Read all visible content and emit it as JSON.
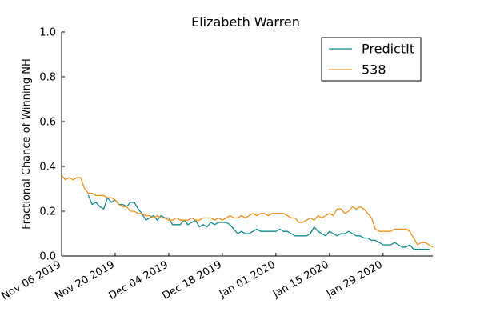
{
  "chart_data": {
    "type": "line",
    "title": "Elizabeth Warren",
    "xlabel": "",
    "ylabel": "Fractional Chance of Winning NH",
    "x_range": [
      "2019-11-06",
      "2020-02-11"
    ],
    "ylim": [
      0.0,
      1.0
    ],
    "yticks": [
      "0.0",
      "0.2",
      "0.4",
      "0.6",
      "0.8",
      "1.0"
    ],
    "xticks": [
      {
        "date": "2019-11-06",
        "label": "Nov 06 2019"
      },
      {
        "date": "2019-11-20",
        "label": "Nov 20 2019"
      },
      {
        "date": "2019-12-04",
        "label": "Dec 04 2019"
      },
      {
        "date": "2019-12-18",
        "label": "Dec 18 2019"
      },
      {
        "date": "2020-01-01",
        "label": "Jan 01 2020"
      },
      {
        "date": "2020-01-15",
        "label": "Jan 15 2020"
      },
      {
        "date": "2020-01-29",
        "label": "Jan 29 2020"
      }
    ],
    "grid": false,
    "legend": "top-right",
    "series": [
      {
        "name": "PredictIt",
        "color": "#0e8a8f",
        "points": [
          [
            "2019-11-13",
            0.27
          ],
          [
            "2019-11-14",
            0.23
          ],
          [
            "2019-11-15",
            0.24
          ],
          [
            "2019-11-16",
            0.22
          ],
          [
            "2019-11-17",
            0.21
          ],
          [
            "2019-11-18",
            0.26
          ],
          [
            "2019-11-19",
            0.24
          ],
          [
            "2019-11-20",
            0.25
          ],
          [
            "2019-11-21",
            0.23
          ],
          [
            "2019-11-22",
            0.23
          ],
          [
            "2019-11-23",
            0.22
          ],
          [
            "2019-11-24",
            0.24
          ],
          [
            "2019-11-25",
            0.24
          ],
          [
            "2019-11-26",
            0.21
          ],
          [
            "2019-11-27",
            0.19
          ],
          [
            "2019-11-28",
            0.16
          ],
          [
            "2019-11-29",
            0.17
          ],
          [
            "2019-11-30",
            0.18
          ],
          [
            "2019-12-01",
            0.16
          ],
          [
            "2019-12-02",
            0.18
          ],
          [
            "2019-12-03",
            0.17
          ],
          [
            "2019-12-04",
            0.17
          ],
          [
            "2019-12-05",
            0.14
          ],
          [
            "2019-12-06",
            0.14
          ],
          [
            "2019-12-07",
            0.14
          ],
          [
            "2019-12-08",
            0.16
          ],
          [
            "2019-12-09",
            0.14
          ],
          [
            "2019-12-10",
            0.15
          ],
          [
            "2019-12-11",
            0.16
          ],
          [
            "2019-12-12",
            0.13
          ],
          [
            "2019-12-13",
            0.14
          ],
          [
            "2019-12-14",
            0.13
          ],
          [
            "2019-12-15",
            0.15
          ],
          [
            "2019-12-16",
            0.14
          ],
          [
            "2019-12-17",
            0.15
          ],
          [
            "2019-12-18",
            0.15
          ],
          [
            "2019-12-19",
            0.15
          ],
          [
            "2019-12-20",
            0.14
          ],
          [
            "2019-12-21",
            0.12
          ],
          [
            "2019-12-22",
            0.1
          ],
          [
            "2019-12-23",
            0.11
          ],
          [
            "2019-12-24",
            0.1
          ],
          [
            "2019-12-25",
            0.1
          ],
          [
            "2019-12-26",
            0.11
          ],
          [
            "2019-12-27",
            0.12
          ],
          [
            "2019-12-28",
            0.11
          ],
          [
            "2019-12-29",
            0.11
          ],
          [
            "2019-12-30",
            0.11
          ],
          [
            "2019-12-31",
            0.11
          ],
          [
            "2020-01-01",
            0.11
          ],
          [
            "2020-01-02",
            0.12
          ],
          [
            "2020-01-03",
            0.11
          ],
          [
            "2020-01-04",
            0.11
          ],
          [
            "2020-01-05",
            0.1
          ],
          [
            "2020-01-06",
            0.09
          ],
          [
            "2020-01-07",
            0.09
          ],
          [
            "2020-01-08",
            0.09
          ],
          [
            "2020-01-09",
            0.09
          ],
          [
            "2020-01-10",
            0.1
          ],
          [
            "2020-01-11",
            0.13
          ],
          [
            "2020-01-12",
            0.11
          ],
          [
            "2020-01-13",
            0.1
          ],
          [
            "2020-01-14",
            0.09
          ],
          [
            "2020-01-15",
            0.11
          ],
          [
            "2020-01-16",
            0.1
          ],
          [
            "2020-01-17",
            0.09
          ],
          [
            "2020-01-18",
            0.1
          ],
          [
            "2020-01-19",
            0.1
          ],
          [
            "2020-01-20",
            0.11
          ],
          [
            "2020-01-21",
            0.1
          ],
          [
            "2020-01-22",
            0.09
          ],
          [
            "2020-01-23",
            0.09
          ],
          [
            "2020-01-24",
            0.08
          ],
          [
            "2020-01-25",
            0.08
          ],
          [
            "2020-01-26",
            0.07
          ],
          [
            "2020-01-27",
            0.07
          ],
          [
            "2020-01-28",
            0.06
          ],
          [
            "2020-01-29",
            0.05
          ],
          [
            "2020-01-30",
            0.05
          ],
          [
            "2020-01-31",
            0.05
          ],
          [
            "2020-02-01",
            0.06
          ],
          [
            "2020-02-02",
            0.05
          ],
          [
            "2020-02-03",
            0.04
          ],
          [
            "2020-02-04",
            0.04
          ],
          [
            "2020-02-05",
            0.05
          ],
          [
            "2020-02-06",
            0.03
          ],
          [
            "2020-02-07",
            0.03
          ],
          [
            "2020-02-08",
            0.03
          ],
          [
            "2020-02-09",
            0.03
          ],
          [
            "2020-02-10",
            0.03
          ]
        ]
      },
      {
        "name": "538",
        "color": "#f0901a",
        "points": [
          [
            "2019-11-06",
            0.36
          ],
          [
            "2019-11-07",
            0.34
          ],
          [
            "2019-11-08",
            0.35
          ],
          [
            "2019-11-09",
            0.34
          ],
          [
            "2019-11-10",
            0.35
          ],
          [
            "2019-11-11",
            0.35
          ],
          [
            "2019-11-12",
            0.3
          ],
          [
            "2019-11-13",
            0.28
          ],
          [
            "2019-11-14",
            0.28
          ],
          [
            "2019-11-15",
            0.27
          ],
          [
            "2019-11-16",
            0.27
          ],
          [
            "2019-11-17",
            0.27
          ],
          [
            "2019-11-18",
            0.26
          ],
          [
            "2019-11-19",
            0.26
          ],
          [
            "2019-11-20",
            0.25
          ],
          [
            "2019-11-21",
            0.23
          ],
          [
            "2019-11-22",
            0.22
          ],
          [
            "2019-11-23",
            0.22
          ],
          [
            "2019-11-24",
            0.2
          ],
          [
            "2019-11-25",
            0.2
          ],
          [
            "2019-11-26",
            0.19
          ],
          [
            "2019-11-27",
            0.19
          ],
          [
            "2019-11-28",
            0.18
          ],
          [
            "2019-11-29",
            0.18
          ],
          [
            "2019-11-30",
            0.17
          ],
          [
            "2019-12-01",
            0.18
          ],
          [
            "2019-12-02",
            0.17
          ],
          [
            "2019-12-03",
            0.17
          ],
          [
            "2019-12-04",
            0.16
          ],
          [
            "2019-12-05",
            0.16
          ],
          [
            "2019-12-06",
            0.17
          ],
          [
            "2019-12-07",
            0.16
          ],
          [
            "2019-12-08",
            0.16
          ],
          [
            "2019-12-09",
            0.16
          ],
          [
            "2019-12-10",
            0.17
          ],
          [
            "2019-12-11",
            0.16
          ],
          [
            "2019-12-12",
            0.16
          ],
          [
            "2019-12-13",
            0.17
          ],
          [
            "2019-12-14",
            0.17
          ],
          [
            "2019-12-15",
            0.17
          ],
          [
            "2019-12-16",
            0.16
          ],
          [
            "2019-12-17",
            0.17
          ],
          [
            "2019-12-18",
            0.16
          ],
          [
            "2019-12-19",
            0.17
          ],
          [
            "2019-12-20",
            0.18
          ],
          [
            "2019-12-21",
            0.17
          ],
          [
            "2019-12-22",
            0.17
          ],
          [
            "2019-12-23",
            0.18
          ],
          [
            "2019-12-24",
            0.17
          ],
          [
            "2019-12-25",
            0.18
          ],
          [
            "2019-12-26",
            0.19
          ],
          [
            "2019-12-27",
            0.18
          ],
          [
            "2019-12-28",
            0.19
          ],
          [
            "2019-12-29",
            0.19
          ],
          [
            "2019-12-30",
            0.18
          ],
          [
            "2019-12-31",
            0.19
          ],
          [
            "2020-01-01",
            0.19
          ],
          [
            "2020-01-02",
            0.19
          ],
          [
            "2020-01-03",
            0.19
          ],
          [
            "2020-01-04",
            0.18
          ],
          [
            "2020-01-05",
            0.17
          ],
          [
            "2020-01-06",
            0.17
          ],
          [
            "2020-01-07",
            0.15
          ],
          [
            "2020-01-08",
            0.15
          ],
          [
            "2020-01-09",
            0.16
          ],
          [
            "2020-01-10",
            0.17
          ],
          [
            "2020-01-11",
            0.16
          ],
          [
            "2020-01-12",
            0.18
          ],
          [
            "2020-01-13",
            0.17
          ],
          [
            "2020-01-14",
            0.18
          ],
          [
            "2020-01-15",
            0.19
          ],
          [
            "2020-01-16",
            0.18
          ],
          [
            "2020-01-17",
            0.21
          ],
          [
            "2020-01-18",
            0.21
          ],
          [
            "2020-01-19",
            0.19
          ],
          [
            "2020-01-20",
            0.2
          ],
          [
            "2020-01-21",
            0.22
          ],
          [
            "2020-01-22",
            0.21
          ],
          [
            "2020-01-23",
            0.22
          ],
          [
            "2020-01-24",
            0.21
          ],
          [
            "2020-01-25",
            0.19
          ],
          [
            "2020-01-26",
            0.17
          ],
          [
            "2020-01-27",
            0.12
          ],
          [
            "2020-01-28",
            0.11
          ],
          [
            "2020-01-29",
            0.11
          ],
          [
            "2020-01-30",
            0.11
          ],
          [
            "2020-01-31",
            0.11
          ],
          [
            "2020-02-01",
            0.12
          ],
          [
            "2020-02-02",
            0.12
          ],
          [
            "2020-02-03",
            0.12
          ],
          [
            "2020-02-04",
            0.12
          ],
          [
            "2020-02-05",
            0.11
          ],
          [
            "2020-02-06",
            0.08
          ],
          [
            "2020-02-07",
            0.05
          ],
          [
            "2020-02-08",
            0.06
          ],
          [
            "2020-02-09",
            0.06
          ],
          [
            "2020-02-10",
            0.05
          ],
          [
            "2020-02-11",
            0.04
          ]
        ]
      }
    ]
  }
}
